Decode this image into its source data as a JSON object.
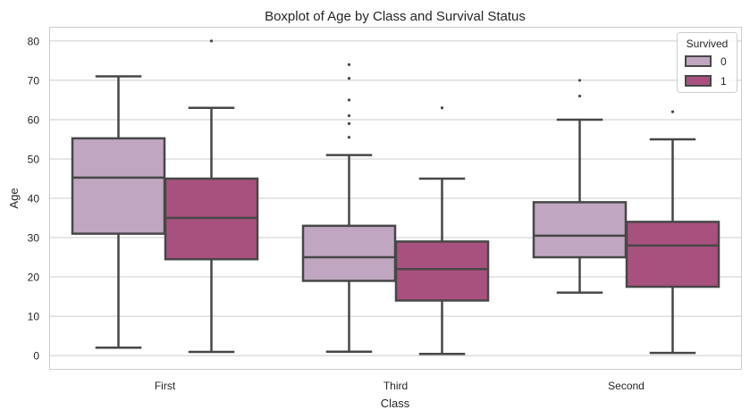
{
  "chart_data": {
    "type": "boxplot",
    "title": "Boxplot of Age by Class and Survival Status",
    "xlabel": "Class",
    "ylabel": "Age",
    "categories": [
      "First",
      "Third",
      "Second"
    ],
    "ylim": [
      -3.5,
      83.5
    ],
    "yticks": [
      0,
      10,
      20,
      30,
      40,
      50,
      60,
      70,
      80
    ],
    "grid": true,
    "legend": {
      "title": "Survived",
      "position": "top-right"
    },
    "series": [
      {
        "name": "0",
        "color": "#c0a6c0",
        "boxes": [
          {
            "whisker_low": 2,
            "q1": 31,
            "median": 45.25,
            "q3": 55.25,
            "whisker_high": 71,
            "outliers": []
          },
          {
            "whisker_low": 1,
            "q1": 19,
            "median": 25,
            "q3": 33,
            "whisker_high": 51,
            "outliers": [
              55.5,
              59,
              61,
              65,
              70.5,
              74
            ]
          },
          {
            "whisker_low": 16,
            "q1": 25,
            "median": 30.5,
            "q3": 39,
            "whisker_high": 60,
            "outliers": [
              66,
              70
            ]
          }
        ]
      },
      {
        "name": "1",
        "color": "#a8517e",
        "boxes": [
          {
            "whisker_low": 0.92,
            "q1": 24.5,
            "median": 35,
            "q3": 45,
            "whisker_high": 63,
            "outliers": [
              80
            ]
          },
          {
            "whisker_low": 0.42,
            "q1": 14,
            "median": 22,
            "q3": 29,
            "whisker_high": 45,
            "outliers": [
              63
            ]
          },
          {
            "whisker_low": 0.67,
            "q1": 17.5,
            "median": 28,
            "q3": 34,
            "whisker_high": 55,
            "outliers": [
              62
            ]
          }
        ]
      }
    ]
  }
}
